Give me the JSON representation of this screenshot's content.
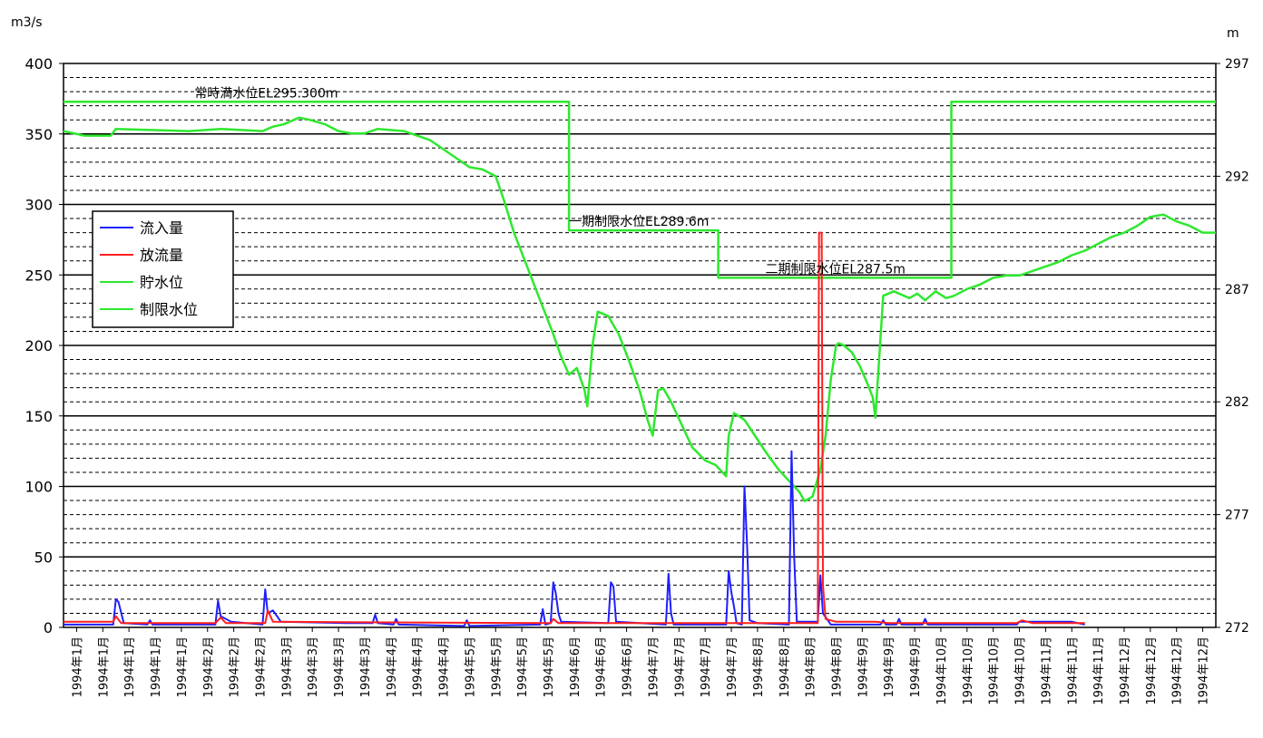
{
  "chart_data": {
    "type": "line",
    "title": "",
    "left_axis": {
      "unit_label": "m3/s",
      "range": [
        0,
        400
      ],
      "ticks": [
        "0",
        "50",
        "100",
        "150",
        "200",
        "250",
        "300",
        "350",
        "400"
      ]
    },
    "right_axis": {
      "unit_label": "m",
      "range": [
        272,
        297
      ],
      "ticks": [
        "272",
        "277",
        "282",
        "287",
        "292",
        "297"
      ]
    },
    "x_axis": {
      "categories": [
        "1994年1月",
        "1994年1月",
        "1994年1月",
        "1994年1月",
        "1994年1月",
        "1994年2月",
        "1994年2月",
        "1994年2月",
        "1994年3月",
        "1994年3月",
        "1994年3月",
        "1994年3月",
        "1994年4月",
        "1994年4月",
        "1994年4月",
        "1994年5月",
        "1994年5月",
        "1994年5月",
        "1994年5月",
        "1994年6月",
        "1994年6月",
        "1994年6月",
        "1994年7月",
        "1994年7月",
        "1994年7月",
        "1994年7月",
        "1994年8月",
        "1994年8月",
        "1994年8月",
        "1994年8月",
        "1994年9月",
        "1994年9月",
        "1994年9月",
        "1994年10月",
        "1994年10月",
        "1994年10月",
        "1994年10月",
        "1994年11月",
        "1994年11月",
        "1994年11月",
        "1994年12月",
        "1994年12月",
        "1994年12月",
        "1994年12月"
      ]
    },
    "grid": true,
    "legend": {
      "placement": "left",
      "entries": [
        {
          "name": "流入量",
          "color": "#1f1fff"
        },
        {
          "name": "放流量",
          "color": "#ff1f1f"
        },
        {
          "name": "貯水位",
          "color": "#2ee82e"
        },
        {
          "name": "制限水位",
          "color": "#2ee82e"
        }
      ]
    },
    "annotations": [
      {
        "text": "常時満水位EL295.300m",
        "x": 5.0,
        "level": 295.3
      },
      {
        "text": "一期制限水位EL289.6m",
        "x": 19.3,
        "level": 289.6
      },
      {
        "text": "二期制限水位EL287.5m",
        "x": 26.8,
        "level": 287.5
      }
    ],
    "series": [
      {
        "name": "流入量",
        "axis": "left",
        "color": "#1f1fff",
        "points": [
          [
            0,
            2
          ],
          [
            1.9,
            2
          ],
          [
            2.0,
            20
          ],
          [
            2.1,
            18
          ],
          [
            2.3,
            3
          ],
          [
            3.2,
            2
          ],
          [
            3.3,
            5
          ],
          [
            3.4,
            2
          ],
          [
            5.8,
            2
          ],
          [
            5.9,
            19
          ],
          [
            6.0,
            8
          ],
          [
            6.4,
            4
          ],
          [
            7.6,
            2
          ],
          [
            7.7,
            27
          ],
          [
            7.8,
            10
          ],
          [
            8.0,
            12
          ],
          [
            8.3,
            4
          ],
          [
            10.8,
            3
          ],
          [
            11.8,
            3
          ],
          [
            11.9,
            9
          ],
          [
            12.0,
            3
          ],
          [
            12.6,
            2
          ],
          [
            12.7,
            6
          ],
          [
            12.8,
            2
          ],
          [
            15.3,
            1
          ],
          [
            15.4,
            5
          ],
          [
            15.5,
            1
          ],
          [
            18.2,
            2
          ],
          [
            18.3,
            13
          ],
          [
            18.4,
            2
          ],
          [
            18.6,
            3
          ],
          [
            18.7,
            32
          ],
          [
            18.8,
            24
          ],
          [
            18.9,
            10
          ],
          [
            19.0,
            4
          ],
          [
            20.8,
            3
          ],
          [
            20.9,
            32
          ],
          [
            21.0,
            29
          ],
          [
            21.1,
            4
          ],
          [
            23.0,
            2
          ],
          [
            23.1,
            38
          ],
          [
            23.2,
            10
          ],
          [
            23.3,
            2
          ],
          [
            25.3,
            2
          ],
          [
            25.4,
            40
          ],
          [
            25.5,
            25
          ],
          [
            25.6,
            15
          ],
          [
            25.7,
            3
          ],
          [
            25.9,
            2
          ],
          [
            26.0,
            100
          ],
          [
            26.1,
            60
          ],
          [
            26.2,
            5
          ],
          [
            26.5,
            3
          ],
          [
            27.7,
            2
          ],
          [
            27.8,
            125
          ],
          [
            27.9,
            50
          ],
          [
            28.0,
            4
          ],
          [
            28.8,
            4
          ],
          [
            28.9,
            37
          ],
          [
            29.0,
            10
          ],
          [
            29.3,
            2
          ],
          [
            31.2,
            2
          ],
          [
            31.3,
            5
          ],
          [
            31.4,
            2
          ],
          [
            31.8,
            2
          ],
          [
            31.9,
            6
          ],
          [
            32.0,
            2
          ],
          [
            32.8,
            2
          ],
          [
            32.9,
            6
          ],
          [
            33.0,
            2
          ],
          [
            36.4,
            2
          ],
          [
            36.5,
            4
          ],
          [
            38.5,
            4
          ],
          [
            39.0,
            2
          ]
        ]
      },
      {
        "name": "放流量",
        "axis": "left",
        "color": "#ff1f1f",
        "points": [
          [
            0,
            4
          ],
          [
            1.9,
            4
          ],
          [
            2.0,
            8
          ],
          [
            2.2,
            3
          ],
          [
            5.8,
            3
          ],
          [
            6.0,
            7
          ],
          [
            6.2,
            3
          ],
          [
            7.7,
            3
          ],
          [
            7.8,
            12
          ],
          [
            8.0,
            4
          ],
          [
            18.6,
            3
          ],
          [
            18.7,
            6
          ],
          [
            18.9,
            3
          ],
          [
            26.0,
            3
          ],
          [
            27.8,
            3
          ],
          [
            28.8,
            3
          ],
          [
            28.85,
            280
          ],
          [
            28.95,
            280
          ],
          [
            29.0,
            30
          ],
          [
            29.1,
            6
          ],
          [
            29.5,
            4
          ],
          [
            31.0,
            4
          ],
          [
            31.5,
            3
          ],
          [
            36.4,
            3
          ],
          [
            36.6,
            5
          ],
          [
            37.0,
            3
          ],
          [
            39.0,
            3
          ]
        ]
      },
      {
        "name": "貯水位",
        "axis": "right",
        "color": "#2ee82e",
        "points": [
          [
            0,
            294.0
          ],
          [
            0.8,
            293.8
          ],
          [
            1.8,
            293.8
          ],
          [
            2.0,
            294.1
          ],
          [
            4.8,
            294.0
          ],
          [
            6.0,
            294.1
          ],
          [
            7.6,
            294.0
          ],
          [
            8.0,
            294.2
          ],
          [
            8.4,
            294.3
          ],
          [
            9.0,
            294.6
          ],
          [
            9.4,
            294.5
          ],
          [
            10.0,
            294.3
          ],
          [
            10.5,
            294.0
          ],
          [
            11.0,
            293.9
          ],
          [
            11.5,
            293.9
          ],
          [
            12.0,
            294.1
          ],
          [
            13.0,
            294.0
          ],
          [
            13.5,
            293.8
          ],
          [
            14.0,
            293.6
          ],
          [
            14.5,
            293.2
          ],
          [
            15.0,
            292.8
          ],
          [
            15.5,
            292.4
          ],
          [
            16.0,
            292.3
          ],
          [
            16.5,
            292.0
          ],
          [
            16.8,
            291.0
          ],
          [
            17.2,
            289.5
          ],
          [
            17.7,
            288.0
          ],
          [
            18.2,
            286.5
          ],
          [
            18.7,
            285.0
          ],
          [
            19.0,
            284.0
          ],
          [
            19.3,
            283.2
          ],
          [
            19.6,
            283.5
          ],
          [
            19.9,
            282.5
          ],
          [
            20.0,
            281.8
          ],
          [
            20.2,
            284.5
          ],
          [
            20.4,
            286.0
          ],
          [
            20.8,
            285.8
          ],
          [
            21.2,
            285.0
          ],
          [
            21.6,
            283.8
          ],
          [
            22.0,
            282.5
          ],
          [
            22.3,
            281.2
          ],
          [
            22.5,
            280.5
          ],
          [
            22.7,
            282.5
          ],
          [
            22.9,
            282.6
          ],
          [
            23.2,
            282.0
          ],
          [
            23.6,
            281.0
          ],
          [
            24.0,
            280.0
          ],
          [
            24.5,
            279.4
          ],
          [
            24.9,
            279.2
          ],
          [
            25.3,
            278.7
          ],
          [
            25.4,
            280.5
          ],
          [
            25.6,
            281.5
          ],
          [
            26.0,
            281.2
          ],
          [
            26.4,
            280.5
          ],
          [
            26.8,
            279.8
          ],
          [
            27.3,
            279.0
          ],
          [
            27.7,
            278.5
          ],
          [
            28.1,
            278.0
          ],
          [
            28.3,
            277.6
          ],
          [
            28.6,
            277.8
          ],
          [
            28.9,
            279.0
          ],
          [
            29.1,
            280.5
          ],
          [
            29.3,
            283.0
          ],
          [
            29.5,
            284.5
          ],
          [
            29.6,
            284.6
          ],
          [
            29.8,
            284.5
          ],
          [
            30.1,
            284.2
          ],
          [
            30.4,
            283.6
          ],
          [
            30.7,
            282.8
          ],
          [
            30.9,
            282.2
          ],
          [
            31.0,
            281.3
          ],
          [
            31.3,
            286.7
          ],
          [
            31.7,
            286.9
          ],
          [
            32.3,
            286.6
          ],
          [
            32.6,
            286.8
          ],
          [
            32.9,
            286.5
          ],
          [
            33.3,
            286.9
          ],
          [
            33.7,
            286.6
          ],
          [
            34.0,
            286.7
          ],
          [
            34.5,
            287.0
          ],
          [
            35.0,
            287.2
          ],
          [
            35.5,
            287.5
          ],
          [
            36.0,
            287.6
          ],
          [
            36.5,
            287.6
          ],
          [
            37.0,
            287.8
          ],
          [
            37.5,
            288.0
          ],
          [
            38.0,
            288.2
          ],
          [
            38.5,
            288.5
          ],
          [
            39.0,
            288.7
          ],
          [
            39.5,
            289.0
          ],
          [
            40.0,
            289.3
          ],
          [
            40.5,
            289.5
          ],
          [
            41.0,
            289.8
          ],
          [
            41.5,
            290.2
          ],
          [
            42.0,
            290.3
          ],
          [
            42.5,
            290.0
          ],
          [
            43.0,
            289.8
          ],
          [
            43.5,
            289.5
          ],
          [
            44.0,
            289.5
          ]
        ]
      },
      {
        "name": "制限水位",
        "axis": "right",
        "color": "#2ee82e",
        "points": [
          [
            0,
            295.3
          ],
          [
            19.3,
            295.3
          ],
          [
            19.3,
            289.6
          ],
          [
            25.0,
            289.6
          ],
          [
            25.0,
            287.5
          ],
          [
            33.9,
            287.5
          ],
          [
            33.9,
            295.3
          ],
          [
            44.0,
            295.3
          ]
        ]
      }
    ]
  }
}
